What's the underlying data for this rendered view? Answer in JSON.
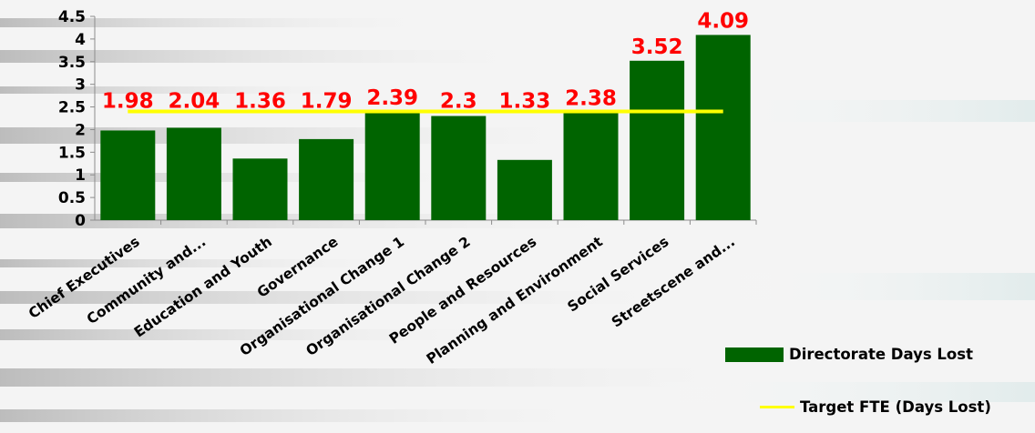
{
  "colors": {
    "bar": "#006400",
    "target_line": "#ffff00",
    "data_label": "#ff0000",
    "axis": "#8c8c8c"
  },
  "chart_data": {
    "type": "bar",
    "categories": [
      "Chief Executives",
      "Community and...",
      "Education and Youth",
      "Governance",
      "Organisational Change 1",
      "Organisational Change 2",
      "People and Resources",
      "Planning and Environment",
      "Social Services",
      "Streetscene and..."
    ],
    "series": [
      {
        "name": "Directorate Days Lost",
        "type": "bar",
        "values": [
          1.98,
          2.04,
          1.36,
          1.79,
          2.39,
          2.3,
          1.33,
          2.38,
          3.52,
          4.09
        ]
      },
      {
        "name": "Target FTE (Days Lost)",
        "type": "line",
        "values": [
          2.4,
          2.4,
          2.4,
          2.4,
          2.4,
          2.4,
          2.4,
          2.4,
          2.4,
          2.4
        ]
      }
    ],
    "data_labels": [
      "1.98",
      "2.04",
      "1.36",
      "1.79",
      "2.39",
      "2.3",
      "1.33",
      "2.38",
      "3.52",
      "4.09"
    ],
    "yticks": [
      "0",
      "0.5",
      "1",
      "1.5",
      "2",
      "2.5",
      "3",
      "3.5",
      "4",
      "4.5"
    ],
    "ylim": [
      0,
      4.5
    ],
    "title": "",
    "xlabel": "",
    "ylabel": "",
    "grid": false,
    "legend_position": "bottom-right"
  }
}
